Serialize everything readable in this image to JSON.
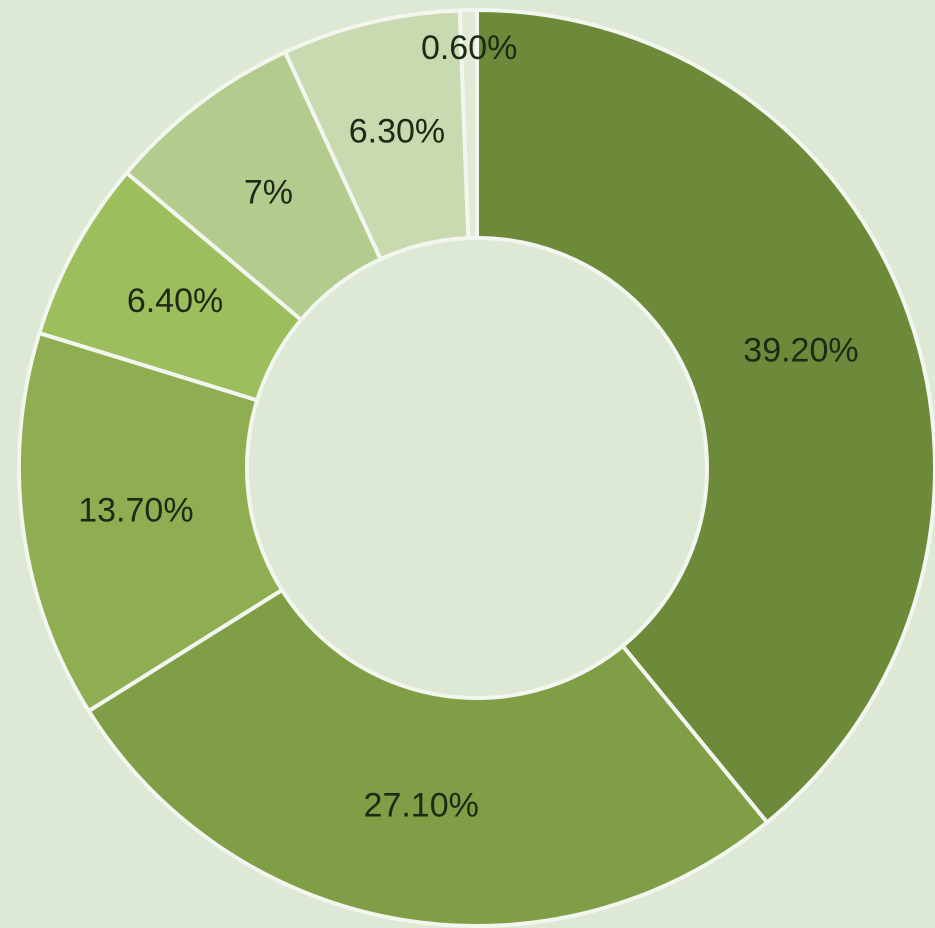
{
  "chart_data": {
    "type": "pie",
    "variant": "donut",
    "slices": [
      {
        "value": 39.2,
        "label": "39.20%",
        "color": "#6c8a3a"
      },
      {
        "value": 27.1,
        "label": "27.10%",
        "color": "#7f9e45"
      },
      {
        "value": 13.7,
        "label": "13.70%",
        "color": "#8fae52"
      },
      {
        "value": 6.4,
        "label": "6.40%",
        "color": "#9cbe5c"
      },
      {
        "value": 7,
        "label": "7%",
        "color": "#b3cc8d"
      },
      {
        "value": 6.3,
        "label": "6.30%",
        "color": "#c9dab0"
      },
      {
        "value": 0.6,
        "label": "0.60%",
        "color": "#e1ead6"
      }
    ],
    "start_angle_deg": 0,
    "direction": "clockwise",
    "legend": "none"
  },
  "colors": {
    "background": "#dde8d5",
    "hole": "#dde8d5",
    "separator": "#f2f6ee"
  }
}
